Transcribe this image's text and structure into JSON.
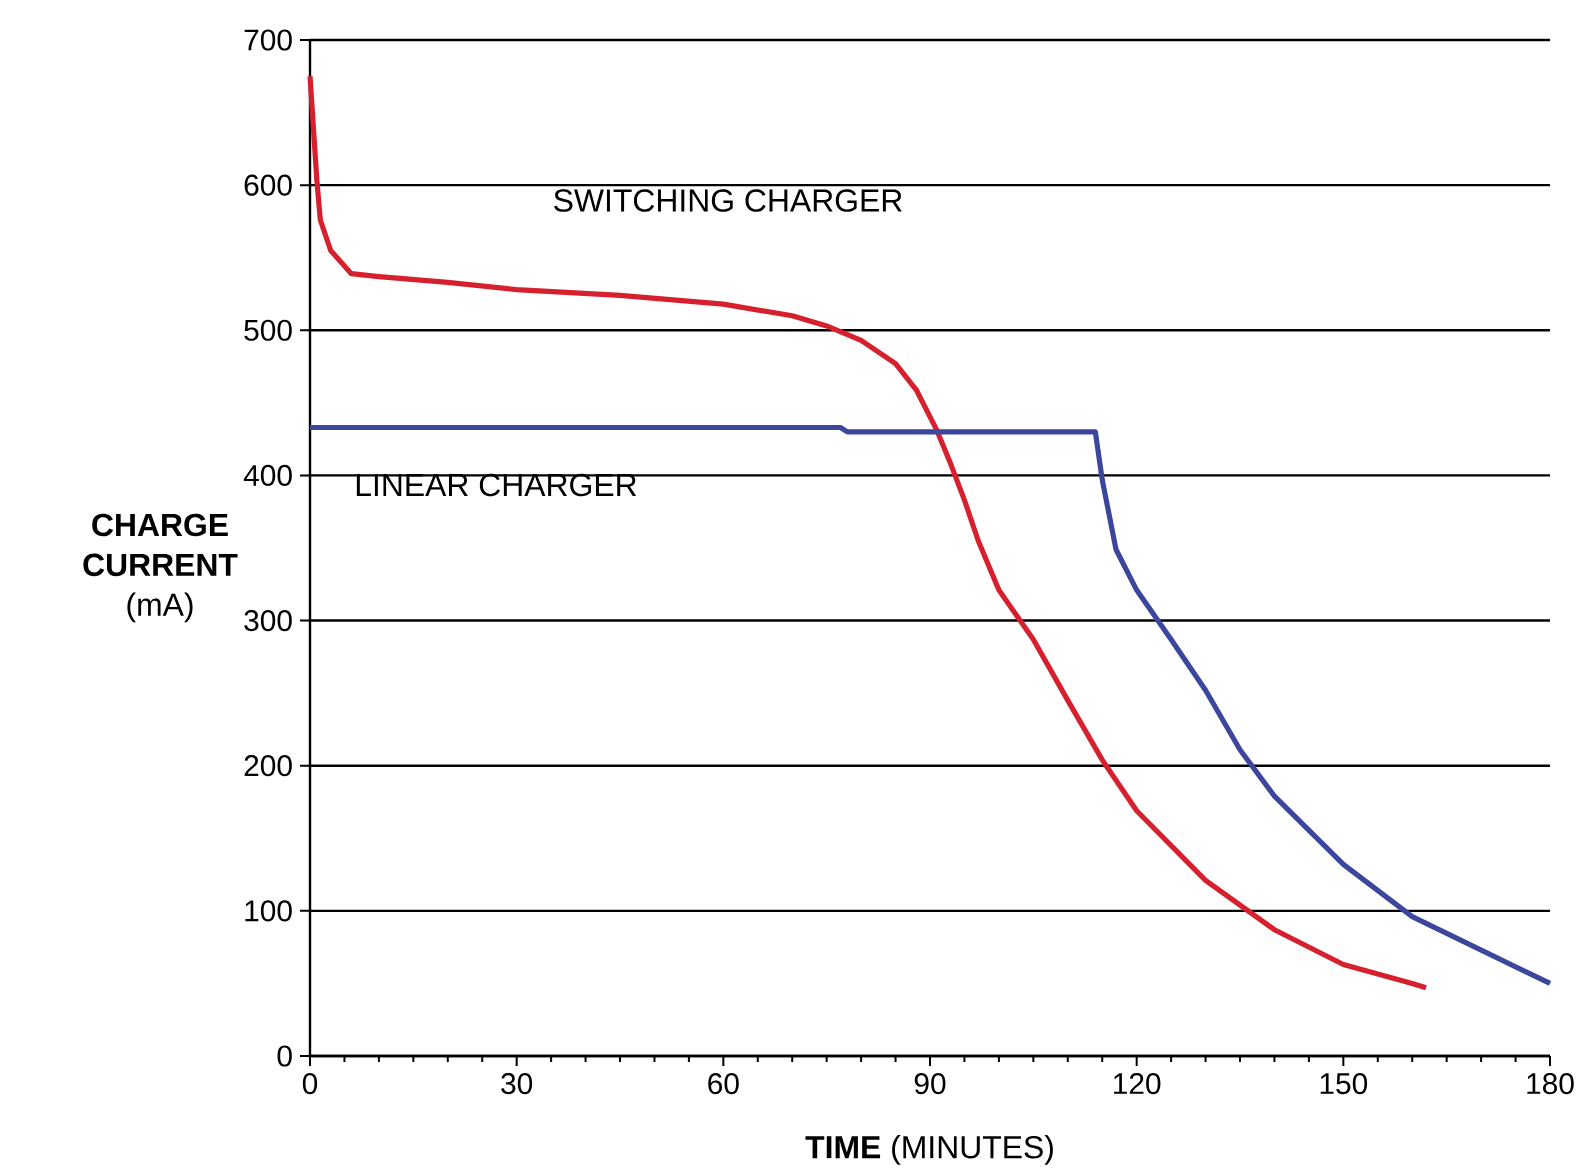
{
  "chart_data": {
    "type": "line",
    "xlabel": "**TIME** (MINUTES)",
    "ylabel": "**CHARGE CURRENT** (mA)",
    "xlim": [
      0,
      180
    ],
    "ylim": [
      0,
      700
    ],
    "xticks": [
      0,
      30,
      60,
      90,
      120,
      150,
      180
    ],
    "yticks": [
      0,
      100,
      200,
      300,
      400,
      500,
      600,
      700
    ],
    "grid": "y",
    "line_style": "solid",
    "marker": "none",
    "series": [
      {
        "name": "SWITCHING CHARGER",
        "color": "#d7202e",
        "x": [
          0,
          1,
          1.5,
          3,
          6,
          10,
          20,
          30,
          45,
          60,
          70,
          75,
          80,
          85,
          88,
          91,
          93,
          95,
          97,
          100,
          105,
          110,
          115,
          120,
          130,
          140,
          150,
          160,
          162
        ],
        "values": [
          675,
          603,
          576,
          555,
          539,
          537,
          533,
          528,
          524,
          518,
          510,
          503,
          493,
          477,
          459,
          431,
          408,
          383,
          355,
          321,
          287,
          245,
          204,
          169,
          121,
          87,
          63,
          50,
          47
        ]
      },
      {
        "name": "LINEAR CHARGER",
        "color": "#3b469c",
        "x": [
          0,
          77,
          78,
          114,
          115,
          117,
          120,
          125,
          130,
          135,
          140,
          150,
          160,
          170,
          180
        ],
        "values": [
          433,
          433,
          430,
          430,
          397,
          349,
          321,
          287,
          252,
          211,
          179,
          132,
          96,
          73,
          50
        ]
      }
    ]
  }
}
